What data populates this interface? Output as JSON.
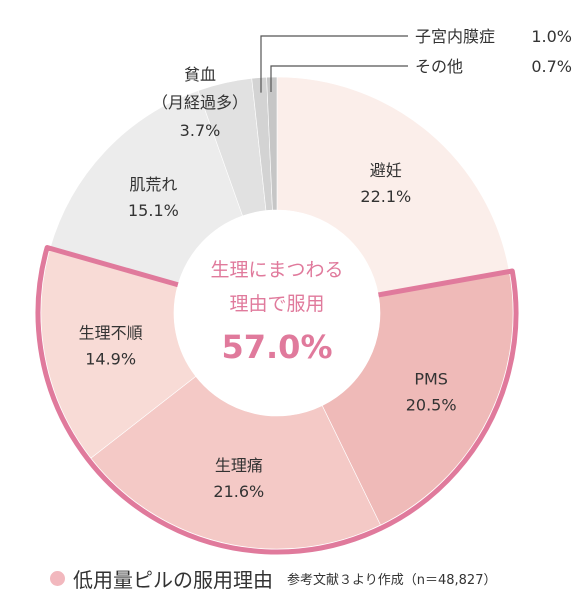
{
  "chart_data": {
    "type": "pie",
    "style": "donut",
    "slices": [
      {
        "label_lines": [
          "避妊"
        ],
        "value_text": "22.1%",
        "value": 22.1,
        "color": "#fbeeea",
        "highlight": false
      },
      {
        "label_lines": [
          "PMS"
        ],
        "value_text": "20.5%",
        "value": 20.5,
        "color": "#efbab8",
        "highlight": true
      },
      {
        "label_lines": [
          "生理痛"
        ],
        "value_text": "21.6%",
        "value": 21.6,
        "color": "#f4c9c6",
        "highlight": true
      },
      {
        "label_lines": [
          "生理不順"
        ],
        "value_text": "14.9%",
        "value": 14.9,
        "color": "#f8dbd6",
        "highlight": true
      },
      {
        "label_lines": [
          "肌荒れ"
        ],
        "value_text": "15.1%",
        "value": 15.1,
        "color": "#ececec",
        "highlight": false
      },
      {
        "label_lines": [
          "貧血",
          "（月経過多）"
        ],
        "value_text": "3.7%",
        "value": 3.7,
        "color": "#e1e1e1",
        "highlight": false
      },
      {
        "label_lines": [
          "子宮内膜症"
        ],
        "value_text": "1.0%",
        "value": 1.0,
        "color": "#d3d3d3",
        "highlight": false
      },
      {
        "label_lines": [
          "その他"
        ],
        "value_text": "0.7%",
        "value": 0.7,
        "color": "#c6c6c6",
        "highlight": false
      }
    ],
    "center_text": [
      "生理にまつわる",
      "理由で服用"
    ],
    "center_value": "57.0%",
    "highlight_color": "#e07a9c"
  },
  "caption": {
    "title": "低用量ピルの服用理由",
    "source": "参考文献３より作成（n＝48,827）",
    "dot_color": "#f2b8be"
  }
}
